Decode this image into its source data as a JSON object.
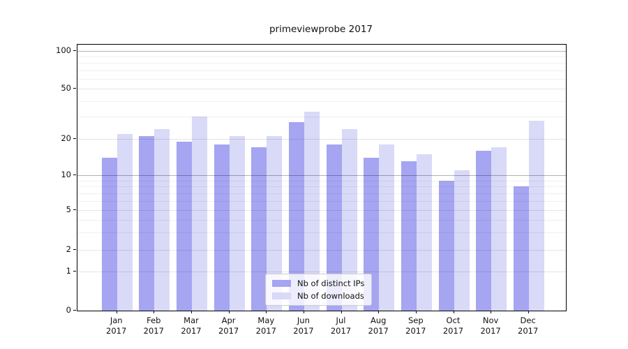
{
  "title": "primeviewprobe 2017",
  "colors": {
    "distinct_ips": "#a5a5f2",
    "downloads": "#d9d9f8",
    "grid_major": "rgba(0,0,0,0.30)",
    "grid_labeled": "rgba(0,0,0,0.10)",
    "grid_minor": "rgba(0,0,0,0.06)",
    "axis": "#000000"
  },
  "chart_data": {
    "type": "bar",
    "title": "primeviewprobe 2017",
    "categories": [
      "Jan 2017",
      "Feb 2017",
      "Mar 2017",
      "Apr 2017",
      "May 2017",
      "Jun 2017",
      "Jul 2017",
      "Aug 2017",
      "Sep 2017",
      "Oct 2017",
      "Nov 2017",
      "Dec 2017"
    ],
    "month_labels": [
      "Jan",
      "Feb",
      "Mar",
      "Apr",
      "May",
      "Jun",
      "Jul",
      "Aug",
      "Sep",
      "Oct",
      "Nov",
      "Dec"
    ],
    "year_label": "2017",
    "series": [
      {
        "name": "Nb of distinct IPs",
        "color": "#a5a5f2",
        "values": [
          14,
          21,
          19,
          18,
          17,
          27,
          18,
          14,
          13,
          9,
          16,
          8
        ]
      },
      {
        "name": "Nb of downloads",
        "color": "#d9d9f8",
        "values": [
          22,
          24,
          30,
          21,
          21,
          33,
          24,
          18,
          15,
          11,
          17,
          28
        ]
      }
    ],
    "xlabel": "",
    "ylabel": "",
    "yscale": "asinh-like (log above 1, compressed near 0)",
    "yticks": [
      0,
      1,
      2,
      5,
      10,
      20,
      50,
      100
    ],
    "ytick_labels": [
      "0",
      "1",
      "2",
      "5",
      "10",
      "20",
      "50",
      "100"
    ],
    "minor_grid_values": [
      3,
      4,
      6,
      7,
      8,
      9,
      30,
      40,
      60,
      70,
      80,
      90
    ],
    "emphasized_grid_values": [
      10,
      100
    ],
    "ylim": [
      0,
      130
    ],
    "grid": "horizontal major+minor, drawn above bars",
    "legend_position": "lower center"
  }
}
